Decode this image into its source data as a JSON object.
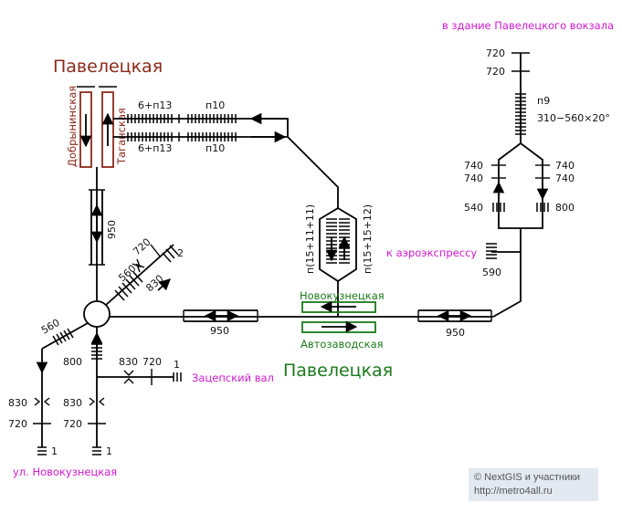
{
  "stations": {
    "paveletskaya_top": "Павелецкая",
    "paveletskaya_bottom": "Павелецкая",
    "platform_left": "Добрынинская",
    "platform_right": "Таганская",
    "novokuznetskaya": "Новокузнецкая",
    "avtozavodskaya": "Автозаводская"
  },
  "exits": {
    "vokzal": "в здание Павелецкого вокзала",
    "aeroexpress": "к аэроэкспрессу",
    "zatsepsky": "Зацепский вал",
    "novokuznetskaya_street": "ул. Новокузнецкая"
  },
  "labels": {
    "top_stairs": "6+п13",
    "bottom_stairs": "6+п13",
    "top_n10": "п10",
    "bottom_n10": "п10",
    "vert_950": "950",
    "diag_720": "720",
    "diag_2": "2",
    "diag_560": "560",
    "diag_830": "830",
    "left_560": "560",
    "h_950_left": "950",
    "h_950_right": "950",
    "esc_left": "п(15+11+11)",
    "esc_right": "п(15+15+12)",
    "exit2_800": "800",
    "exit2_830": "830",
    "exit2_720": "720",
    "exit2_1": "1",
    "exitA_830": "830",
    "exitA_720": "720",
    "exitA_1": "1",
    "exitB_830": "830",
    "exitB_720": "720",
    "exitB_1": "1",
    "r_720a": "720",
    "r_720b": "720",
    "r_n9": "п9",
    "r_spec": "310−560×20°",
    "r_740a": "740",
    "r_740b": "740",
    "r_740c": "740",
    "r_740d": "740",
    "r_540": "540",
    "r_800": "800",
    "r_590": "590"
  },
  "credit": {
    "line1": "© NextGIS и участники",
    "line2": "http://metro4all.ru"
  },
  "colors": {
    "red": "#8b2a1b",
    "green": "#1c7a1c",
    "magenta": "#d11ad1"
  }
}
